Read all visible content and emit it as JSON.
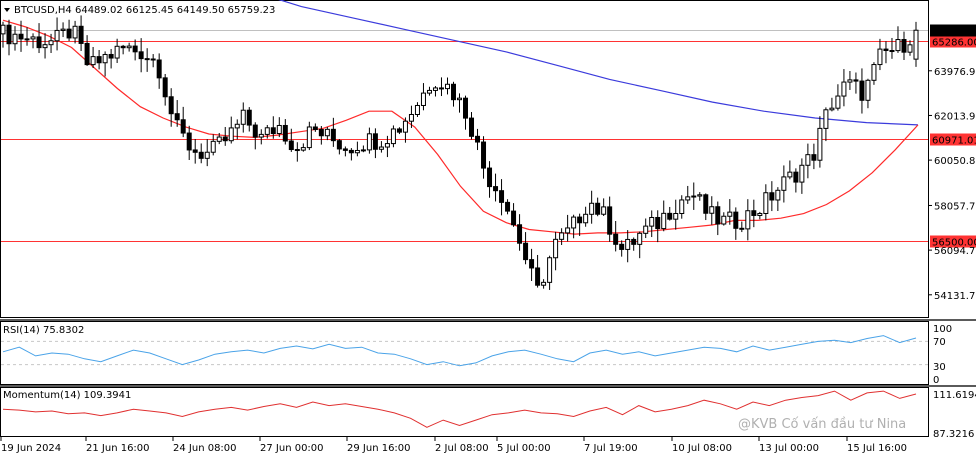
{
  "chart_data": {
    "type": "candlestick",
    "symbol_line": "BTCUSD,H4  64489.02 66125.45 64149.50 65759.23",
    "symbol": "BTCUSD",
    "timeframe": "H4",
    "last_bar": {
      "open": 64489.02,
      "high": 66125.45,
      "low": 64149.5,
      "close": 65759.23
    },
    "price_labels": [
      "63976.90",
      "62013.90",
      "60050.80",
      "58057.70",
      "56094.70",
      "54131.70"
    ],
    "price_range": [
      53200,
      67000
    ],
    "current_price": {
      "value": 65759.23,
      "label": "65759.23"
    },
    "horizontal_lines": [
      {
        "value": 65286.0,
        "label": "65286.00",
        "color": "#ff3333"
      },
      {
        "value": 60971.01,
        "label": "60971.01",
        "color": "#ff3333"
      },
      {
        "value": 56500.0,
        "label": "56500.00",
        "color": "#ff3333"
      }
    ],
    "time_labels": [
      "19 Jun 2024",
      "21 Jun 16:00",
      "24 Jun 08:00",
      "27 Jun 00:00",
      "29 Jun 16:00",
      "2 Jul 08:00",
      "5 Jul 00:00",
      "7 Jul 19:00",
      "10 Jul 08:00",
      "13 Jul 00:00",
      "15 Jul 16:00"
    ],
    "close_path": [
      65600,
      65500,
      65300,
      65250,
      65800,
      64100,
      64600,
      64950,
      64850,
      64300,
      61500,
      60500,
      60300,
      61000,
      61900,
      61000,
      61600,
      60600,
      61400,
      61000,
      60600,
      60900,
      61000,
      61500,
      62500,
      63700,
      63200,
      62000,
      59500,
      58500,
      56500,
      54200,
      56300,
      57000,
      58300,
      57500,
      56000,
      56800,
      57300,
      58100,
      58600,
      57600,
      57300,
      57500,
      58000,
      58800,
      59500,
      60200,
      62500,
      63400,
      63000,
      64700,
      65000,
      65759.23
    ],
    "ma_fast": [
      66200,
      65900,
      65500,
      65000,
      64100,
      63200,
      62400,
      61900,
      61500,
      61200,
      61100,
      61050,
      61150,
      61300,
      61450,
      61800,
      62200,
      62200,
      61500,
      60300,
      58900,
      57800,
      57300,
      57000,
      56900,
      56800,
      56850,
      56850,
      56900,
      57000,
      57100,
      57200,
      57400,
      57400,
      57500,
      57700,
      58100,
      58700,
      59500,
      60500,
      61600
    ],
    "ma_slow": [
      67500,
      66800,
      66300,
      65800,
      65300,
      64800,
      64200,
      63600,
      63100,
      62600,
      62200,
      61900,
      61700,
      61600
    ],
    "indicators": [
      {
        "name": "RSI",
        "label": "RSI(14) 75.8302",
        "period": 14,
        "value": 75.8302,
        "levels": [
          "100",
          "70",
          "30",
          "0"
        ],
        "range": [
          0,
          100
        ],
        "values": [
          52,
          60,
          45,
          50,
          48,
          40,
          35,
          45,
          55,
          50,
          40,
          30,
          38,
          48,
          52,
          55,
          50,
          58,
          62,
          57,
          65,
          58,
          60,
          50,
          48,
          40,
          30,
          35,
          28,
          33,
          45,
          52,
          55,
          48,
          40,
          35,
          50,
          55,
          48,
          52,
          45,
          50,
          55,
          60,
          58,
          52,
          62,
          55,
          60,
          65,
          70,
          72,
          68,
          75,
          80,
          68,
          75.83
        ]
      },
      {
        "name": "Momentum",
        "label": "Momentum(14) 109.3941",
        "period": 14,
        "value": 109.3941,
        "levels": [
          "111.6194",
          "87.3216"
        ],
        "range": [
          87.3216,
          111.6194
        ],
        "values": [
          101,
          100.5,
          99.5,
          100,
          98.5,
          99,
          97.5,
          99,
          101,
          100,
          99,
          97,
          99.5,
          101,
          102,
          100.5,
          102.5,
          104,
          102,
          105,
          103,
          104,
          102.5,
          101,
          99,
          96,
          91,
          95,
          92,
          95,
          98,
          99,
          100.5,
          99,
          98.5,
          97,
          100,
          102,
          98,
          103,
          99.5,
          101,
          103,
          106,
          104,
          101,
          105,
          103,
          106,
          107.5,
          108.5,
          111,
          106,
          110,
          111,
          107,
          109.39
        ]
      }
    ],
    "watermark": "@KVB Cố vấn đầu tư Nina"
  }
}
